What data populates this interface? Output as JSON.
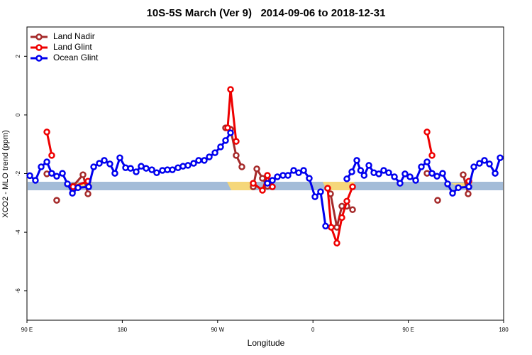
{
  "chart_data": {
    "type": "line",
    "title": "10S-5S March (Ver 9)   2014-09-06 to 2018-12-31",
    "x_label": "Longitude",
    "y_label": "XCO2 - MLO trend (ppm)",
    "xlim": [
      90,
      540
    ],
    "xticks": [
      {
        "value": 90,
        "label": "90 E"
      },
      {
        "value": 180,
        "label": "180"
      },
      {
        "value": 270,
        "label": "90 W"
      },
      {
        "value": 360,
        "label": "0"
      },
      {
        "value": 450,
        "label": "90 E"
      },
      {
        "value": 540,
        "label": "180"
      }
    ],
    "ylim": [
      -7,
      3
    ],
    "yticks": [
      -6,
      -4,
      -2,
      0,
      2
    ],
    "legend": "top-left",
    "series": [
      {
        "name": "Land Nadir",
        "color": "#a52a2a",
        "x": [
          108.8,
          null,
          118.1,
          null,
          133.5,
          142.9,
          147.6,
          null,
          277.5,
          282.2,
          287.5,
          292.9,
          null,
          303.6,
          307.0,
          312.3,
          317.0,
          null,
          376.6,
          382.6,
          387.3,
          392.0,
          397.4,
          null,
          467.7,
          null,
          477.7,
          null,
          501.8,
          506.5
        ],
        "values": [
          -2.01,
          null,
          -2.91,
          null,
          -2.43,
          -2.04,
          -2.69,
          null,
          -0.44,
          -0.49,
          -1.38,
          -1.77,
          null,
          -2.45,
          -1.84,
          -2.16,
          -2.43,
          null,
          -2.69,
          -3.83,
          -3.11,
          -3.11,
          -3.23,
          null,
          -1.99,
          null,
          -2.91,
          null,
          -2.04,
          -2.69
        ]
      },
      {
        "name": "Land Glint",
        "color": "#ee0000",
        "x": [
          108.8,
          113.4,
          null,
          133.5,
          147.6,
          null,
          279.5,
          282.2,
          287.5,
          null,
          303.6,
          312.3,
          317.0,
          321.7,
          null,
          373.9,
          377.2,
          382.6,
          387.3,
          392.0,
          397.4,
          null,
          467.7,
          472.4,
          null,
          507.2
        ],
        "values": [
          -0.58,
          -1.38,
          null,
          -2.45,
          -2.26,
          null,
          -0.44,
          0.87,
          -0.9,
          null,
          -2.33,
          -2.57,
          -2.06,
          -2.45,
          null,
          -2.5,
          -3.83,
          -4.37,
          -3.5,
          -2.94,
          -2.45,
          null,
          -0.58,
          -1.38,
          null,
          -2.26
        ]
      },
      {
        "name": "Ocean Glint",
        "color": "#0000ee",
        "x": [
          92.7,
          98.0,
          103.4,
          108.8,
          113.4,
          118.1,
          123.5,
          128.2,
          132.9,
          138.2,
          148.3,
          153.0,
          158.3,
          163.0,
          168.3,
          173.0,
          177.7,
          183.1,
          187.8,
          193.1,
          197.8,
          202.5,
          207.9,
          212.5,
          217.9,
          222.6,
          227.3,
          232.6,
          237.3,
          242.0,
          247.4,
          252.1,
          257.4,
          262.1,
          267.5,
          272.8,
          277.5,
          282.2,
          null,
          317.0,
          321.7,
          326.4,
          331.7,
          336.4,
          341.8,
          346.5,
          351.2,
          356.5,
          361.9,
          367.2,
          371.9,
          null,
          392.0,
          396.7,
          401.4,
          405.0,
          408.3,
          412.8,
          417.5,
          422.2,
          426.8,
          431.5,
          436.9,
          442.2,
          446.9,
          451.6,
          457.0,
          462.3,
          467.7,
          472.4,
          477.1,
          482.4,
          487.1,
          491.8,
          497.2,
          507.2,
          511.9,
          517.2,
          521.9,
          526.6,
          532.0,
          536.7
        ],
        "values": [
          -2.07,
          -2.23,
          -1.77,
          -1.6,
          -1.99,
          -2.09,
          -1.99,
          -2.35,
          -2.67,
          -2.48,
          -2.45,
          -1.77,
          -1.65,
          -1.55,
          -1.67,
          -1.99,
          -1.46,
          -1.8,
          -1.82,
          -1.94,
          -1.75,
          -1.82,
          -1.87,
          -1.97,
          -1.89,
          -1.87,
          -1.87,
          -1.8,
          -1.75,
          -1.72,
          -1.65,
          -1.55,
          -1.55,
          -1.43,
          -1.29,
          -1.09,
          -0.87,
          -0.61,
          null,
          -2.33,
          -2.23,
          -2.11,
          -2.06,
          -2.06,
          -1.89,
          -1.97,
          -1.89,
          -2.16,
          -2.79,
          -2.62,
          -3.79,
          null,
          -2.18,
          -1.94,
          -1.55,
          -1.89,
          -2.06,
          -1.72,
          -1.97,
          -2.01,
          -1.89,
          -1.97,
          -2.11,
          -2.33,
          -2.01,
          -2.11,
          -2.23,
          -1.77,
          -1.6,
          -1.99,
          -2.09,
          -1.99,
          -2.35,
          -2.67,
          -2.48,
          -2.45,
          -1.77,
          -1.65,
          -1.55,
          -1.67,
          -1.99,
          -1.46
        ]
      }
    ]
  }
}
